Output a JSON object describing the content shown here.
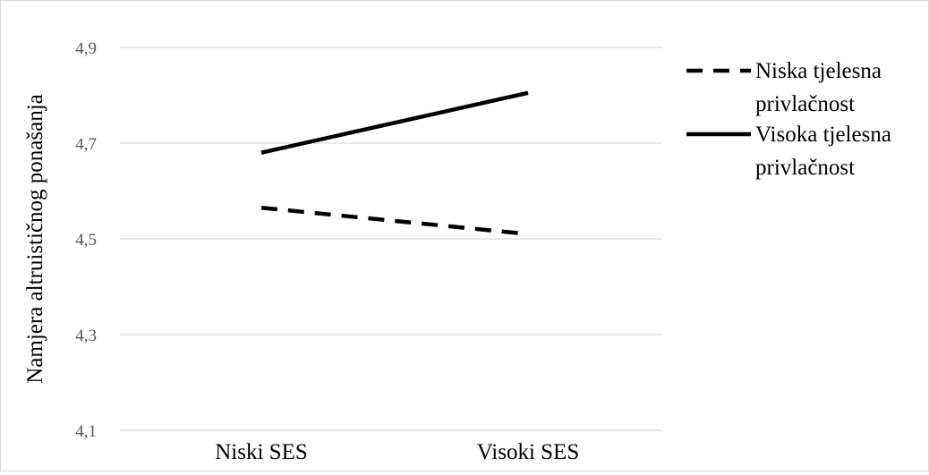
{
  "chart_data": {
    "type": "line",
    "categories": [
      "Niski SES",
      "Visoki SES"
    ],
    "ylabel": "Namjera altruističnog ponašanja",
    "xlabel": "",
    "title": "",
    "ylim": [
      4.1,
      4.9
    ],
    "y_ticks": [
      "4,1",
      "4,3",
      "4,5",
      "4,7",
      "4,9"
    ],
    "y_tick_values": [
      4.1,
      4.3,
      4.5,
      4.7,
      4.9
    ],
    "grid": true,
    "legend_position": "right",
    "series": [
      {
        "name_lines": [
          "Niska tjelesna",
          "privlačnost"
        ],
        "values": [
          4.565,
          4.51
        ],
        "style": "dashed",
        "color": "#000000"
      },
      {
        "name_lines": [
          "Visoka tjelesna",
          "privlačnost"
        ],
        "values": [
          4.68,
          4.805
        ],
        "style": "solid",
        "color": "#000000"
      }
    ]
  }
}
